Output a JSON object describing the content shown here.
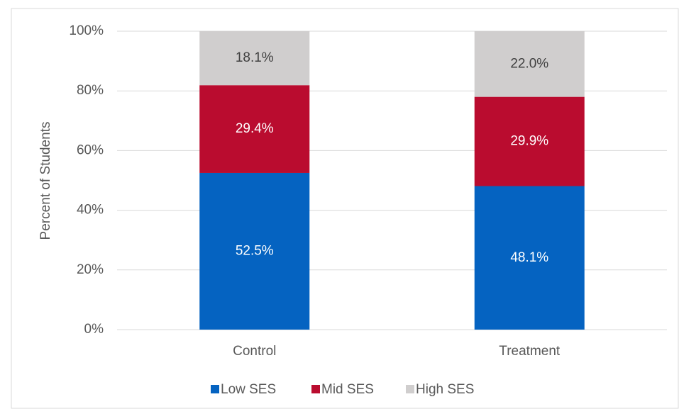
{
  "chart_data": {
    "type": "stacked_bar",
    "categories": [
      "Control",
      "Treatment"
    ],
    "series": [
      {
        "name": "Low SES",
        "color": "#0563c1",
        "values": [
          52.5,
          48.1
        ],
        "value_labels": [
          "52.5%",
          "48.1%"
        ]
      },
      {
        "name": "Mid SES",
        "color": "#ba0c2f",
        "values": [
          29.4,
          29.9
        ],
        "value_labels": [
          "29.4%",
          "29.9%"
        ]
      },
      {
        "name": "High SES",
        "color": "#d0cece",
        "values": [
          18.1,
          22.0
        ],
        "value_labels": [
          "18.1%",
          "22.0%"
        ]
      }
    ],
    "y_label": "Percent of Students",
    "ylim": [
      0,
      100
    ],
    "yticks": [
      {
        "value": 0,
        "label": "0%"
      },
      {
        "value": 20,
        "label": "20%"
      },
      {
        "value": 40,
        "label": "40%"
      },
      {
        "value": 60,
        "label": "60%"
      },
      {
        "value": 80,
        "label": "80%"
      },
      {
        "value": 100,
        "label": "100%"
      }
    ],
    "grid": true,
    "legend": "bottom"
  }
}
